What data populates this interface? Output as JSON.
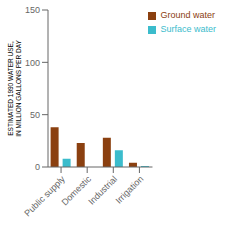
{
  "chart_data": {
    "type": "bar",
    "categories": [
      "Public supply",
      "Domestic",
      "Industrial",
      "Irrigation"
    ],
    "series": [
      {
        "name": "Ground water",
        "color": "#8B4010",
        "values": [
          38,
          23,
          28,
          4
        ]
      },
      {
        "name": "Surface water",
        "color": "#3BBCCC",
        "values": [
          8,
          0,
          16,
          1
        ]
      }
    ],
    "ylabel": [
      "ESTIMATED 1990 WATER USE,",
      "IN MILLION GALLONS PER DAY"
    ],
    "ylim": [
      0,
      150
    ],
    "yticks": [
      0,
      50,
      100,
      150
    ],
    "grid": false,
    "legend": "upper right"
  }
}
